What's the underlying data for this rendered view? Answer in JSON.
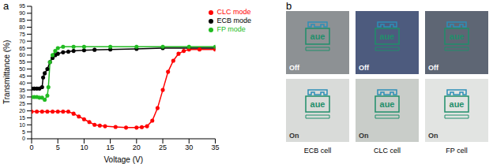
{
  "chart_data": {
    "type": "line",
    "panel_label": "a",
    "x_label": "Voltage (V)",
    "y_label": "Transmittance (%)",
    "xlim": [
      0,
      35
    ],
    "xticks": [
      0,
      5,
      10,
      15,
      20,
      25,
      30,
      35
    ],
    "ylim": [
      0,
      95
    ],
    "yticks": [
      0,
      5,
      10,
      15,
      20,
      25,
      30,
      35,
      40,
      45,
      50,
      55,
      60,
      65,
      70,
      75,
      80,
      85,
      90,
      95
    ],
    "legend": "upper right",
    "marker": "circle",
    "series": [
      {
        "name": "ECB mode",
        "color": "#000000",
        "x": [
          0,
          0.5,
          1,
          1.5,
          2,
          2.2,
          2.5,
          3,
          3.5,
          4,
          4.5,
          5,
          6,
          7,
          8,
          10,
          12,
          15,
          20,
          25,
          30,
          35
        ],
        "values": [
          36,
          36,
          36,
          36,
          37,
          44,
          47,
          50,
          55,
          58,
          60,
          61,
          62,
          62.5,
          63,
          63.5,
          63.8,
          64,
          64.5,
          65,
          65,
          65
        ]
      },
      {
        "name": "CLC mode",
        "color": "#ff0000",
        "x": [
          0,
          1,
          2,
          3,
          4,
          5,
          6,
          7,
          8,
          9,
          10,
          11,
          12,
          13,
          14,
          16,
          18,
          20,
          21,
          22,
          23,
          24,
          25,
          26,
          27,
          28,
          29,
          30,
          32,
          35
        ],
        "values": [
          19.5,
          19.5,
          19.5,
          19.5,
          19.5,
          19.5,
          19.5,
          19.5,
          18,
          16,
          14,
          12,
          10,
          9.5,
          9,
          8.5,
          8,
          8,
          8.3,
          9,
          13,
          22,
          35,
          48,
          56,
          61,
          63,
          64,
          64,
          64
        ]
      },
      {
        "name": "FP mode",
        "color": "#22bb22",
        "x": [
          0,
          0.5,
          1,
          1.5,
          2,
          2.5,
          3,
          3.2,
          3.5,
          4,
          4.5,
          5,
          6,
          8,
          10,
          15,
          20,
          25,
          30,
          35
        ],
        "values": [
          30,
          30,
          30,
          29.5,
          29.5,
          28,
          31,
          37,
          55,
          60,
          63,
          65,
          66,
          66,
          66,
          66,
          66,
          66,
          66,
          66
        ]
      }
    ]
  },
  "panel_b": {
    "label": "b",
    "logo_text": "aue",
    "cells": [
      {
        "name": "ECB cell",
        "off": "Off",
        "on": "On"
      },
      {
        "name": "CLC cell",
        "off": "Off",
        "on": "On"
      },
      {
        "name": "FP cell",
        "off": "Off",
        "on": "On"
      }
    ]
  }
}
